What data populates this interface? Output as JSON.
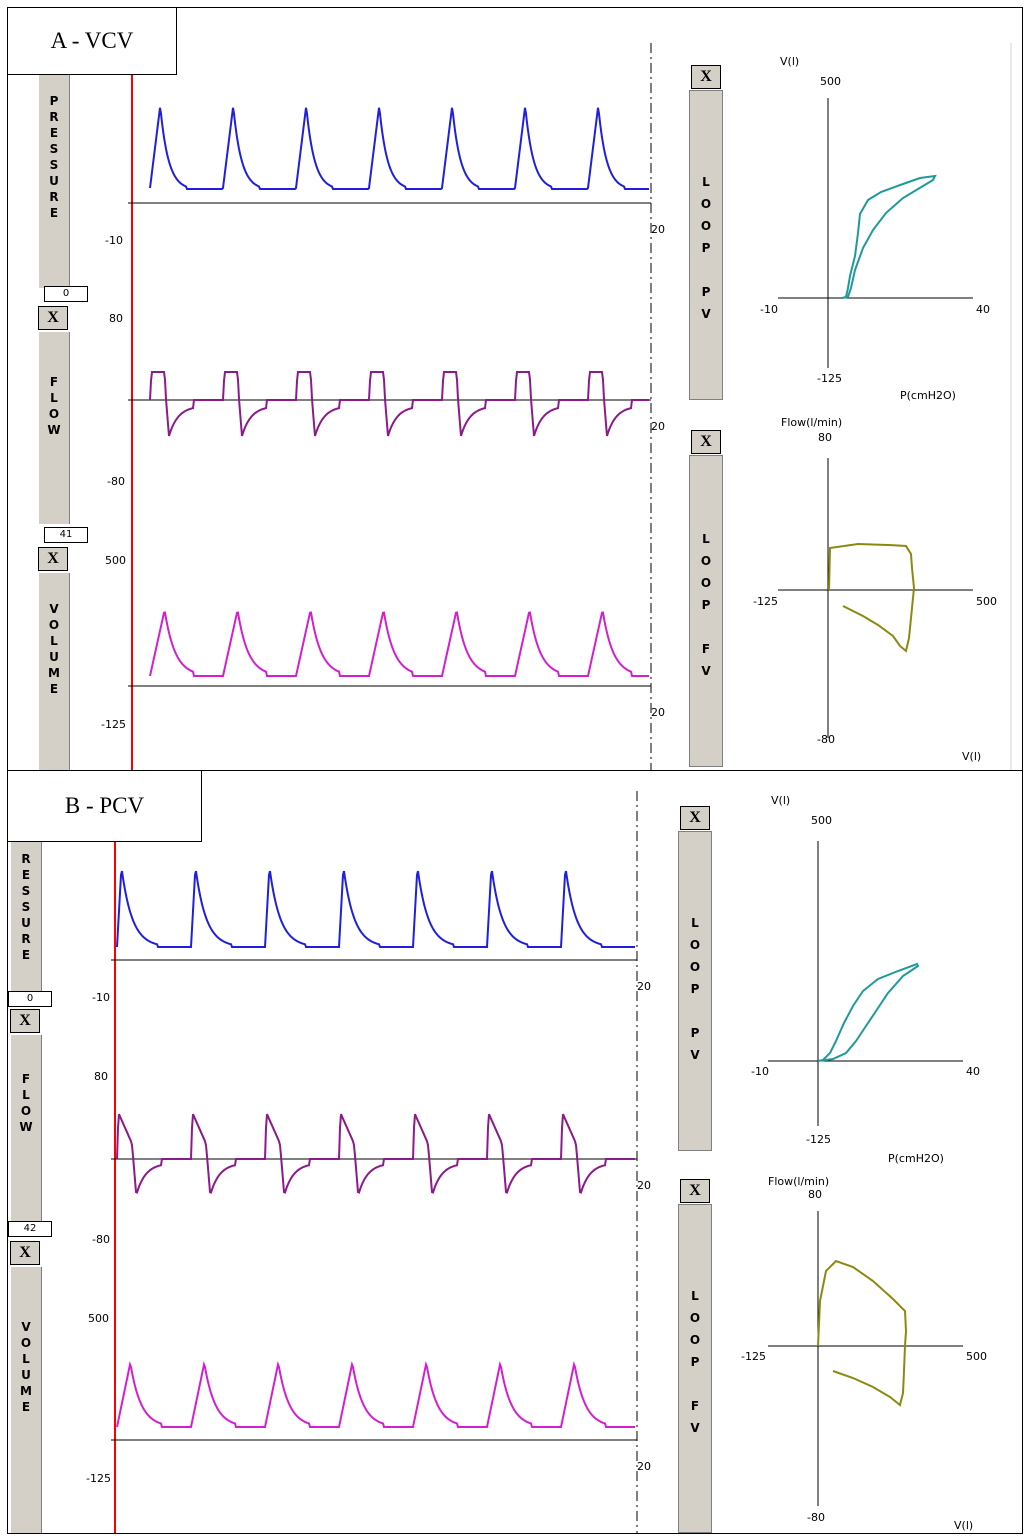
{
  "panels": [
    {
      "id": "A",
      "title": "A - VCV",
      "tabs": {
        "pressure": "P\nR\nE\nS\nS\nU\nR\nE",
        "flow": "F\nL\nO\nW",
        "volume": "V\nO\nL\nU\nM\nE",
        "pressure_value": "0",
        "flow_value": "41",
        "close": "X"
      },
      "axis_labels": {
        "pressure_min": "-10",
        "flow_max": "80",
        "flow_min": "-80",
        "volume_max": "500",
        "volume_min": "-125",
        "time_end_1": "20",
        "time_end_2": "20",
        "time_end_3": "20"
      },
      "loop_buttons": {
        "close": "X",
        "pv": "L\nO\nO\nP\n\nP\nV",
        "fv": "L\nO\nO\nP\n\nF\nV"
      },
      "pv_loop": {
        "y_label": "V(l)",
        "y_max": "500",
        "y_min": "-125",
        "x_min": "-10",
        "x_max": "40",
        "x_label": "P(cmH2O)"
      },
      "fv_loop": {
        "y_label": "Flow(l/min)",
        "y_max": "80",
        "y_min": "-80",
        "x_min": "-125",
        "x_max": "500",
        "x_label": "V(l)"
      }
    },
    {
      "id": "B",
      "title": "B - PCV",
      "tabs": {
        "pressure": "R\nE\nS\nS\nU\nR\nE",
        "flow": "F\nL\nO\nW",
        "volume": "V\nO\nL\nU\nM\nE",
        "pressure_value": "0",
        "flow_value": "42",
        "close": "X"
      },
      "axis_labels": {
        "pressure_min": "-10",
        "flow_max": "80",
        "flow_min": "-80",
        "volume_max": "500",
        "volume_min": "-125",
        "time_end_1": "20",
        "time_end_2": "20",
        "time_end_3": "20"
      },
      "loop_buttons": {
        "close": "X",
        "pv": "L\nO\nO\nP\n\nP\nV",
        "fv": "L\nO\nO\nP\n\nF\nV"
      },
      "pv_loop": {
        "y_label": "V(l)",
        "y_max": "500",
        "y_min": "-125",
        "x_min": "-10",
        "x_max": "40",
        "x_label": "P(cmH2O)"
      },
      "fv_loop": {
        "y_label": "Flow(l/min)",
        "y_max": "80",
        "y_min": "-80",
        "x_min": "-125",
        "x_max": "500",
        "x_label": "V(l)"
      }
    }
  ],
  "colors": {
    "pressure": "#1f1fdf",
    "flow": "#8b1a8b",
    "volume": "#d21fd2",
    "pv_loop": "#1f9a9a",
    "fv_loop": "#8a8a10",
    "cursor": "#ff0000"
  },
  "chart_data": [
    {
      "type": "line",
      "panel": "A",
      "series": [
        {
          "name": "PRESSURE",
          "waveform": "volume-controlled",
          "breaths": 7
        }
      ],
      "xlim": [
        0,
        20
      ],
      "ylim": [
        -10,
        40
      ]
    },
    {
      "type": "line",
      "panel": "A",
      "series": [
        {
          "name": "FLOW",
          "waveform": "square inspiratory, decelerating expiratory",
          "breaths": 7
        }
      ],
      "xlim": [
        0,
        20
      ],
      "ylim": [
        -80,
        80
      ]
    },
    {
      "type": "line",
      "panel": "A",
      "series": [
        {
          "name": "VOLUME",
          "breaths": 7
        }
      ],
      "xlim": [
        0,
        20
      ],
      "ylim": [
        -125,
        500
      ]
    },
    {
      "type": "line",
      "panel": "A",
      "series": [
        {
          "name": "LOOP PV"
        }
      ],
      "xlim": [
        -10,
        40
      ],
      "ylim": [
        -125,
        500
      ]
    },
    {
      "type": "line",
      "panel": "A",
      "series": [
        {
          "name": "LOOP FV"
        }
      ],
      "xlim": [
        -125,
        500
      ],
      "ylim": [
        -80,
        80
      ]
    },
    {
      "type": "line",
      "panel": "B",
      "series": [
        {
          "name": "PRESSURE",
          "waveform": "pressure-controlled",
          "breaths": 7
        }
      ],
      "xlim": [
        0,
        20
      ],
      "ylim": [
        -10,
        40
      ]
    },
    {
      "type": "line",
      "panel": "B",
      "series": [
        {
          "name": "FLOW",
          "waveform": "decelerating inspiratory and expiratory",
          "breaths": 7
        }
      ],
      "xlim": [
        0,
        20
      ],
      "ylim": [
        -80,
        80
      ]
    },
    {
      "type": "line",
      "panel": "B",
      "series": [
        {
          "name": "VOLUME",
          "breaths": 7
        }
      ],
      "xlim": [
        0,
        20
      ],
      "ylim": [
        -125,
        500
      ]
    },
    {
      "type": "line",
      "panel": "B",
      "series": [
        {
          "name": "LOOP PV"
        }
      ],
      "xlim": [
        -10,
        40
      ],
      "ylim": [
        -125,
        500
      ]
    },
    {
      "type": "line",
      "panel": "B",
      "series": [
        {
          "name": "LOOP FV"
        }
      ],
      "xlim": [
        -125,
        500
      ],
      "ylim": [
        -80,
        80
      ]
    }
  ]
}
